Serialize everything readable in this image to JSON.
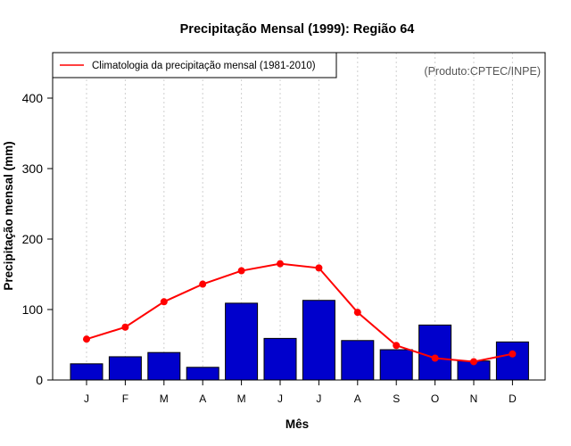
{
  "chart_data": {
    "type": "bar",
    "title": "Precipitação Mensal (1999): Região 64",
    "xlabel": "Mês",
    "ylabel": "Precipitação mensal (mm)",
    "credit": "(Produto:CPTEC/INPE)",
    "categories": [
      "J",
      "F",
      "M",
      "A",
      "M",
      "J",
      "J",
      "A",
      "S",
      "O",
      "N",
      "D"
    ],
    "ylim": [
      0,
      460
    ],
    "yticks": [
      0,
      100,
      200,
      300,
      400
    ],
    "grid": "vertical-dotted",
    "legend_position": "top-left",
    "series": [
      {
        "name": "Precipitação mensal 1999",
        "kind": "bar",
        "color": "#0000CC",
        "values": [
          23,
          33,
          39,
          18,
          109,
          59,
          113,
          56,
          43,
          78,
          27,
          54
        ]
      },
      {
        "name": "Climatologia da precipitação mensal (1981-2010)",
        "kind": "line",
        "color": "#FF0000",
        "values": [
          58,
          75,
          111,
          136,
          155,
          165,
          159,
          96,
          49,
          31,
          26,
          37
        ]
      }
    ]
  }
}
